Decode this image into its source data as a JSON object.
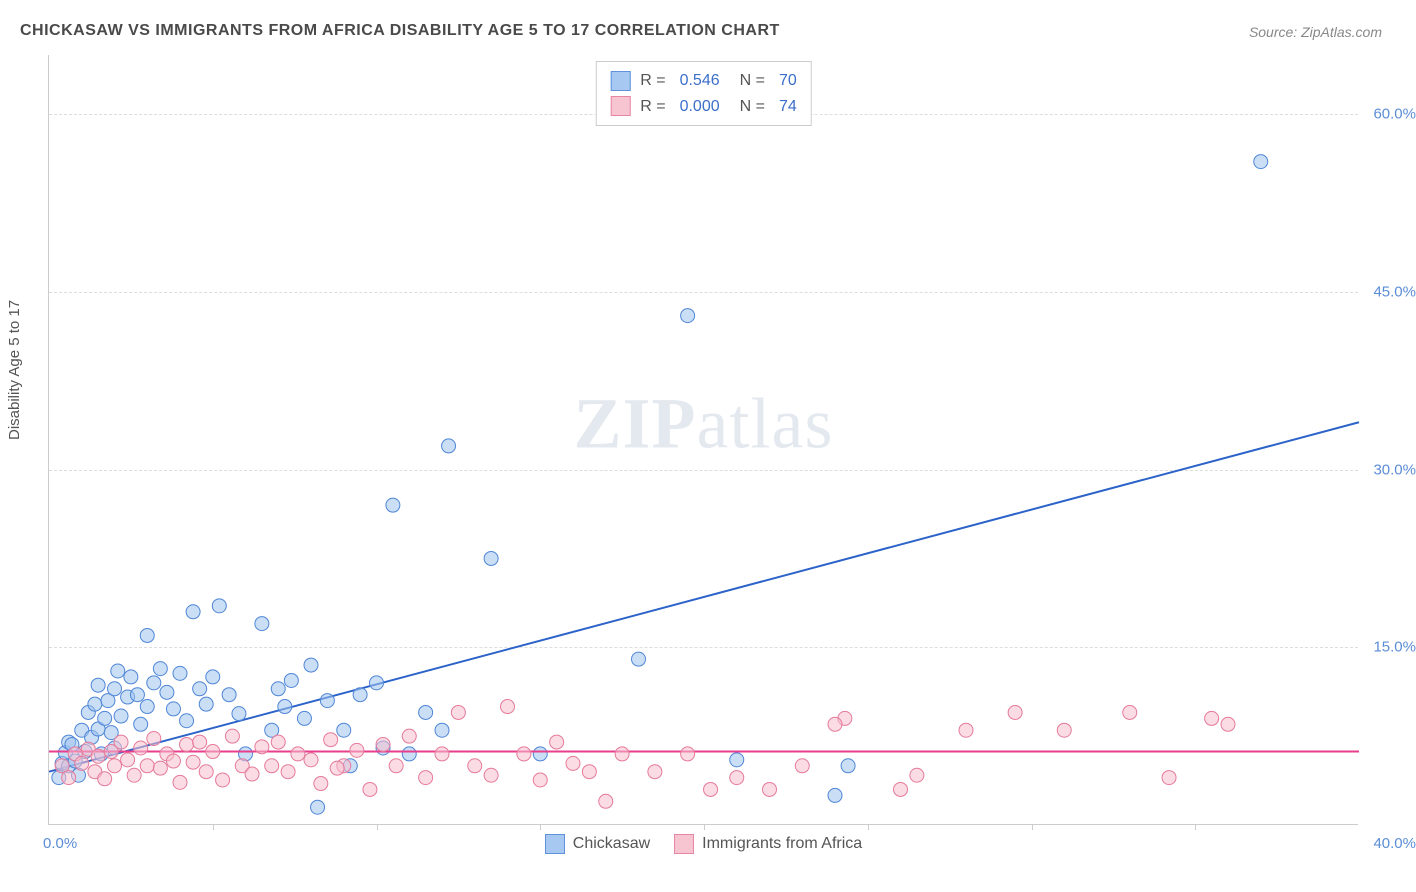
{
  "title": "CHICKASAW VS IMMIGRANTS FROM AFRICA DISABILITY AGE 5 TO 17 CORRELATION CHART",
  "source": "Source: ZipAtlas.com",
  "ylabel": "Disability Age 5 to 17",
  "watermark_a": "ZIP",
  "watermark_b": "atlas",
  "chart": {
    "type": "scatter",
    "xlim": [
      0,
      40
    ],
    "ylim": [
      0,
      65
    ],
    "xtick_left": "0.0%",
    "xtick_right": "40.0%",
    "yticks": [
      {
        "v": 15,
        "label": "15.0%"
      },
      {
        "v": 30,
        "label": "30.0%"
      },
      {
        "v": 45,
        "label": "45.0%"
      },
      {
        "v": 60,
        "label": "60.0%"
      }
    ],
    "xtick_marks": [
      5,
      10,
      15,
      20,
      25,
      30,
      35
    ],
    "background_color": "#ffffff",
    "grid_color": "#dddddd",
    "marker_radius": 7,
    "marker_opacity": 0.55,
    "line_width": 2,
    "series": [
      {
        "name": "Chickasaw",
        "fill": "#9ec3ef",
        "stroke": "#4f86d6",
        "line_color": "#2b63c9",
        "R": "0.546",
        "N": "70",
        "trend": {
          "x1": 0,
          "y1": 4.5,
          "x2": 40,
          "y2": 34.0
        },
        "points": [
          [
            0.3,
            4.0
          ],
          [
            0.4,
            5.2
          ],
          [
            0.5,
            6.1
          ],
          [
            0.6,
            7.0
          ],
          [
            0.6,
            5.0
          ],
          [
            0.7,
            6.8
          ],
          [
            0.8,
            5.4
          ],
          [
            0.9,
            4.2
          ],
          [
            1.0,
            8.0
          ],
          [
            1.1,
            6.2
          ],
          [
            1.2,
            9.5
          ],
          [
            1.3,
            7.4
          ],
          [
            1.4,
            10.2
          ],
          [
            1.5,
            8.1
          ],
          [
            1.5,
            11.8
          ],
          [
            1.7,
            9.0
          ],
          [
            1.8,
            10.5
          ],
          [
            1.9,
            7.8
          ],
          [
            2.0,
            11.5
          ],
          [
            2.0,
            6.5
          ],
          [
            2.2,
            9.2
          ],
          [
            2.4,
            10.8
          ],
          [
            2.5,
            12.5
          ],
          [
            2.7,
            11.0
          ],
          [
            2.8,
            8.5
          ],
          [
            3.0,
            16.0
          ],
          [
            3.0,
            10.0
          ],
          [
            3.2,
            12.0
          ],
          [
            3.4,
            13.2
          ],
          [
            3.6,
            11.2
          ],
          [
            3.8,
            9.8
          ],
          [
            4.0,
            12.8
          ],
          [
            4.4,
            18.0
          ],
          [
            4.6,
            11.5
          ],
          [
            4.8,
            10.2
          ],
          [
            5.0,
            12.5
          ],
          [
            5.2,
            18.5
          ],
          [
            5.5,
            11.0
          ],
          [
            5.8,
            9.4
          ],
          [
            6.0,
            6.0
          ],
          [
            6.5,
            17.0
          ],
          [
            7.0,
            11.5
          ],
          [
            7.2,
            10.0
          ],
          [
            7.4,
            12.2
          ],
          [
            7.8,
            9.0
          ],
          [
            8.0,
            13.5
          ],
          [
            8.2,
            1.5
          ],
          [
            8.5,
            10.5
          ],
          [
            9.0,
            8.0
          ],
          [
            9.5,
            11.0
          ],
          [
            10.0,
            12.0
          ],
          [
            10.2,
            6.5
          ],
          [
            10.5,
            27.0
          ],
          [
            11.0,
            6.0
          ],
          [
            11.5,
            9.5
          ],
          [
            12.0,
            8.0
          ],
          [
            12.2,
            32.0
          ],
          [
            13.5,
            22.5
          ],
          [
            15.0,
            6.0
          ],
          [
            18.0,
            14.0
          ],
          [
            19.5,
            43.0
          ],
          [
            21.0,
            5.5
          ],
          [
            24.0,
            2.5
          ],
          [
            24.4,
            5.0
          ],
          [
            37.0,
            56.0
          ],
          [
            9.2,
            5.0
          ],
          [
            6.8,
            8.0
          ],
          [
            4.2,
            8.8
          ],
          [
            2.1,
            13.0
          ],
          [
            1.6,
            6.0
          ]
        ]
      },
      {
        "name": "Immigrants from Africa",
        "fill": "#f7bfce",
        "stroke": "#e57a9a",
        "line_color": "#e83e8c",
        "R": "0.000",
        "N": "74",
        "trend": {
          "x1": 0,
          "y1": 6.2,
          "x2": 40,
          "y2": 6.2
        },
        "points": [
          [
            0.4,
            5.0
          ],
          [
            0.6,
            4.0
          ],
          [
            0.8,
            6.0
          ],
          [
            1.0,
            5.2
          ],
          [
            1.2,
            6.4
          ],
          [
            1.4,
            4.5
          ],
          [
            1.5,
            5.8
          ],
          [
            1.7,
            3.9
          ],
          [
            1.9,
            6.2
          ],
          [
            2.0,
            5.0
          ],
          [
            2.2,
            7.0
          ],
          [
            2.4,
            5.5
          ],
          [
            2.6,
            4.2
          ],
          [
            2.8,
            6.5
          ],
          [
            3.0,
            5.0
          ],
          [
            3.2,
            7.3
          ],
          [
            3.4,
            4.8
          ],
          [
            3.6,
            6.0
          ],
          [
            3.8,
            5.4
          ],
          [
            4.0,
            3.6
          ],
          [
            4.2,
            6.8
          ],
          [
            4.4,
            5.3
          ],
          [
            4.6,
            7.0
          ],
          [
            4.8,
            4.5
          ],
          [
            5.0,
            6.2
          ],
          [
            5.3,
            3.8
          ],
          [
            5.6,
            7.5
          ],
          [
            5.9,
            5.0
          ],
          [
            6.2,
            4.3
          ],
          [
            6.5,
            6.6
          ],
          [
            6.8,
            5.0
          ],
          [
            7.0,
            7.0
          ],
          [
            7.3,
            4.5
          ],
          [
            7.6,
            6.0
          ],
          [
            8.0,
            5.5
          ],
          [
            8.3,
            3.5
          ],
          [
            8.6,
            7.2
          ],
          [
            9.0,
            5.0
          ],
          [
            9.4,
            6.3
          ],
          [
            9.8,
            3.0
          ],
          [
            10.2,
            6.8
          ],
          [
            10.6,
            5.0
          ],
          [
            11.0,
            7.5
          ],
          [
            11.5,
            4.0
          ],
          [
            12.0,
            6.0
          ],
          [
            12.5,
            9.5
          ],
          [
            13.0,
            5.0
          ],
          [
            13.5,
            4.2
          ],
          [
            14.0,
            10.0
          ],
          [
            14.5,
            6.0
          ],
          [
            15.0,
            3.8
          ],
          [
            15.5,
            7.0
          ],
          [
            16.0,
            5.2
          ],
          [
            16.5,
            4.5
          ],
          [
            17.0,
            2.0
          ],
          [
            17.5,
            6.0
          ],
          [
            18.5,
            4.5
          ],
          [
            19.5,
            6.0
          ],
          [
            20.2,
            3.0
          ],
          [
            21.0,
            4.0
          ],
          [
            22.0,
            3.0
          ],
          [
            23.0,
            5.0
          ],
          [
            24.3,
            9.0
          ],
          [
            26.0,
            3.0
          ],
          [
            26.5,
            4.2
          ],
          [
            28.0,
            8.0
          ],
          [
            29.5,
            9.5
          ],
          [
            31.0,
            8.0
          ],
          [
            33.0,
            9.5
          ],
          [
            34.2,
            4.0
          ],
          [
            35.5,
            9.0
          ],
          [
            36.0,
            8.5
          ],
          [
            24.0,
            8.5
          ],
          [
            8.8,
            4.8
          ]
        ]
      }
    ]
  },
  "bottom_legend": [
    {
      "label": "Chickasaw",
      "fill": "#9ec3ef",
      "stroke": "#4f86d6"
    },
    {
      "label": "Immigrants from Africa",
      "fill": "#f7bfce",
      "stroke": "#e57a9a"
    }
  ]
}
